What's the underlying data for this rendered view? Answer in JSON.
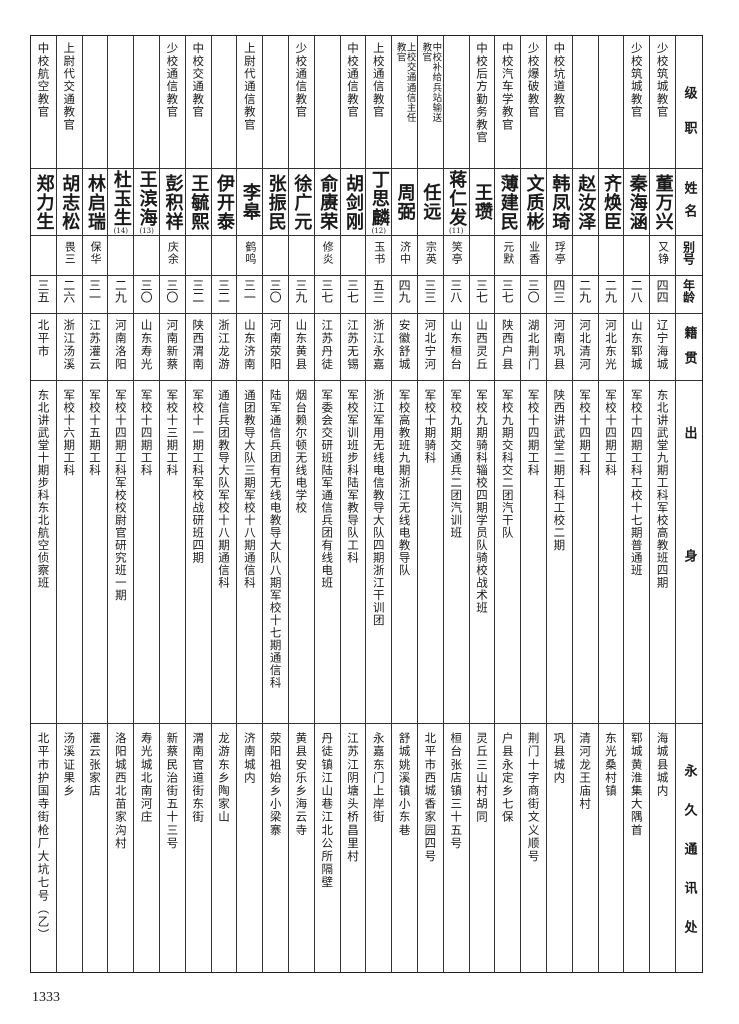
{
  "header": {
    "rank": "级职",
    "name": "姓名",
    "alias": "别号",
    "age": "年龄",
    "origin": "籍贯",
    "education": "出身",
    "address": "永久通讯处"
  },
  "rows": [
    {
      "rank": "少校筑城教官",
      "name": "董万兴",
      "alias": "又铮",
      "age": "四四",
      "origin": "辽宁海城",
      "education": "东北讲武堂九期工科军校高教班四期",
      "address": "海城县城内"
    },
    {
      "rank": "少校筑城教官",
      "name": "秦海涵",
      "alias": "",
      "age": "二八",
      "origin": "山东郓城",
      "education": "军校十四期工科工校十七期普通班",
      "address": "郓城黄淮集大隅首"
    },
    {
      "rank": "",
      "name": "齐焕臣",
      "alias": "",
      "age": "二九",
      "origin": "河北东光",
      "education": "军校十四期工科",
      "address": "东光桑村镇"
    },
    {
      "rank": "",
      "name": "赵汝泽",
      "alias": "",
      "age": "二九",
      "origin": "河北清河",
      "education": "军校十四期工科",
      "address": "清河龙王庙村"
    },
    {
      "rank": "中校坑道教官",
      "name": "韩凤琦",
      "alias": "琈亭",
      "age": "四三",
      "origin": "河南巩县",
      "education": "陕西讲武堂二期工科工校二期",
      "address": "巩县城内"
    },
    {
      "rank": "少校爆破教官",
      "name": "文质彬",
      "alias": "业香",
      "age": "三〇",
      "origin": "湖北荆门",
      "education": "军校十四期工科",
      "address": "荆门十字商街文义顺号"
    },
    {
      "rank": "中校汽车学教官",
      "name": "薄建民",
      "alias": "元默",
      "age": "三七",
      "origin": "陕西户县",
      "education": "军校九期交科交二团汽干队",
      "address": "户县永定乡七保"
    },
    {
      "rank": "中校后方勤务教官",
      "name": "王瓒",
      "alias": "",
      "age": "三七",
      "origin": "山西灵丘",
      "education": "军校九期骑科辎校四期学员队骑校战术班",
      "address": "灵丘三山村胡同"
    },
    {
      "rank": "",
      "name": "蒋仁发",
      "note": "(11)",
      "alias": "笑亭",
      "age": "三八",
      "origin": "山东桓台",
      "education": "军校九期交通兵二团汽训班",
      "address": "桓台张店镇三十五号"
    },
    {
      "rank": "中校补给兵站输送教官",
      "name": "任远",
      "alias": "宗英",
      "age": "三三",
      "origin": "河北宁河",
      "education": "军校十期骑科",
      "address": "北平市西城香家园四号"
    },
    {
      "rank": "上校交通通信主任教官",
      "name": "周弼",
      "alias": "济中",
      "age": "四九",
      "origin": "安徽舒城",
      "education": "军校高教班九期浙江无线电教导队",
      "address": "舒城姚溪镇小东巷"
    },
    {
      "rank": "上校通信教官",
      "name": "丁思麟",
      "note": "(12)",
      "alias": "玉书",
      "age": "五三",
      "origin": "浙江永嘉",
      "education": "浙江军用无线电信教导大队四期浙江干训团",
      "address": "永嘉东门上岸街"
    },
    {
      "rank": "中校通信教官",
      "name": "胡剑刚",
      "alias": "",
      "age": "三七",
      "origin": "江苏无锡",
      "education": "军校军训班步科陆军教导队工科",
      "address": "江苏江阴塘头桥昌里村"
    },
    {
      "rank": "",
      "name": "俞赓荣",
      "alias": "修炎",
      "age": "三七",
      "origin": "江苏丹徒",
      "education": "军委会交研班陆军通信兵团有线电班",
      "address": "丹徒镇江山巷江北公所隔壁"
    },
    {
      "rank": "少校通信教官",
      "name": "徐广元",
      "alias": "",
      "age": "三九",
      "origin": "山东黄县",
      "education": "烟台赖尔顿无线电学校",
      "address": "黄县安乐乡海云寺"
    },
    {
      "rank": "",
      "name": "张振民",
      "alias": "",
      "age": "三〇",
      "origin": "河南荥阳",
      "education": "陆军通信兵团有无线电教导大队八期军校十七期通信科",
      "address": "荥阳祖始乡小梁寨"
    },
    {
      "rank": "上尉代通信教官",
      "name": "李皋",
      "alias": "鹤鸣",
      "age": "三一",
      "origin": "山东济南",
      "education": "通团教导大队三期军校十八期通信科",
      "address": "济南城内"
    },
    {
      "rank": "",
      "name": "伊开泰",
      "alias": "",
      "age": "三二",
      "origin": "浙江龙游",
      "education": "通信兵团教导大队军校十八期通信科",
      "address": "龙游东乡陶家山"
    },
    {
      "rank": "中校交通教官",
      "name": "王毓熙",
      "alias": "",
      "age": "三二",
      "origin": "陕西渭南",
      "education": "军校十一期工科军校战研班四期",
      "address": "渭南官道街东街"
    },
    {
      "rank": "少校通信教官",
      "name": "彭积祥",
      "alias": "庆余",
      "age": "三〇",
      "origin": "河南新蔡",
      "education": "军校十三期工科",
      "address": "新蔡民治街五十三号"
    },
    {
      "rank": "",
      "name": "王滨海",
      "note": "(13)",
      "alias": "",
      "age": "三〇",
      "origin": "山东寿光",
      "education": "军校十四期工科",
      "address": "寿光城北南河庄"
    },
    {
      "rank": "",
      "name": "杜玉生",
      "note": "(14)",
      "alias": "",
      "age": "二九",
      "origin": "河南洛阳",
      "education": "军校十四期工科军校校尉官研究班一期",
      "address": "洛阳城西北苗家沟村"
    },
    {
      "rank": "",
      "name": "林启瑞",
      "alias": "保华",
      "age": "三一",
      "origin": "江苏灌云",
      "education": "军校十五期工科",
      "address": "灌云张家店"
    },
    {
      "rank": "上尉代交通教官",
      "name": "胡志松",
      "alias": "畏三",
      "age": "二六",
      "origin": "浙江汤溪",
      "education": "军校十六期工科",
      "address": "汤溪证果乡"
    },
    {
      "rank": "中校航空教官",
      "name": "郑力生",
      "alias": "",
      "age": "三五",
      "origin": "北平市",
      "education": "东北讲武堂十期步科东北航空侦察班",
      "address": "北平市护国寺街枪厂大坑七号（乙）"
    }
  ],
  "page_number": "1333"
}
